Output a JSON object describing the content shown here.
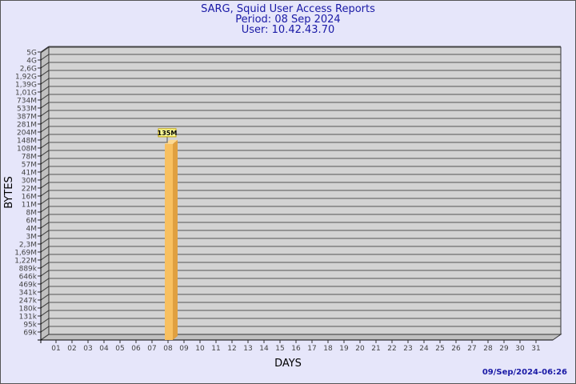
{
  "header": {
    "title": "SARG, Squid User Access Reports",
    "period": "Period: 08 Sep 2024",
    "user": "User: 10.42.43.70"
  },
  "footer": {
    "timestamp": "09/Sep/2024-06:26"
  },
  "colors": {
    "background": "#e6e6fa",
    "plot": "#d3d3d3",
    "bar": "#f8c060",
    "title": "#1a1aa6"
  },
  "chart_data": {
    "type": "bar",
    "xlabel": "DAYS",
    "ylabel": "BYTES",
    "y_scale": "log",
    "grid": true,
    "y_ticks": [
      "5G",
      "4G",
      "2,6G",
      "1,92G",
      "1,39G",
      "1,01G",
      "734M",
      "533M",
      "387M",
      "281M",
      "204M",
      "148M",
      "108M",
      "78M",
      "57M",
      "41M",
      "30M",
      "22M",
      "16M",
      "11M",
      "8M",
      "6M",
      "4M",
      "3M",
      "2,3M",
      "1,69M",
      "1,22M",
      "889k",
      "646k",
      "469k",
      "341k",
      "247k",
      "180k",
      "131k",
      "95k",
      "69k"
    ],
    "categories": [
      "01",
      "02",
      "03",
      "04",
      "05",
      "06",
      "07",
      "08",
      "09",
      "10",
      "11",
      "12",
      "13",
      "14",
      "15",
      "16",
      "17",
      "18",
      "19",
      "20",
      "21",
      "22",
      "23",
      "24",
      "25",
      "26",
      "27",
      "28",
      "29",
      "30",
      "31"
    ],
    "series": [
      {
        "values": [
          null,
          null,
          null,
          null,
          null,
          null,
          null,
          135000000,
          null,
          null,
          null,
          null,
          null,
          null,
          null,
          null,
          null,
          null,
          null,
          null,
          null,
          null,
          null,
          null,
          null,
          null,
          null,
          null,
          null,
          null,
          null
        ],
        "labels": {
          "08": "135M"
        }
      }
    ]
  }
}
